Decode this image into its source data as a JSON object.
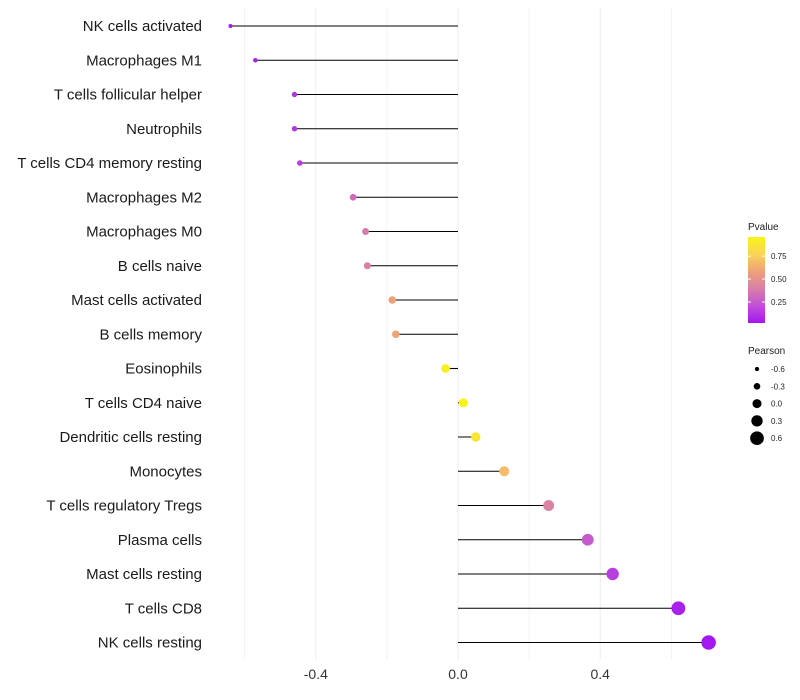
{
  "chart_data": {
    "type": "lollipop",
    "x_ticks": [
      -0.4,
      0.0,
      0.4
    ],
    "x_tick_labels": [
      "-0.4",
      "0.0",
      "0.4"
    ],
    "xlim": [
      -0.62,
      0.76
    ],
    "baseline": 0,
    "points": [
      {
        "category": "NK cells activated",
        "pearson": -0.64,
        "pvalue": 0.03
      },
      {
        "category": "Macrophages M1",
        "pearson": -0.57,
        "pvalue": 0.06
      },
      {
        "category": "T cells follicular helper",
        "pearson": -0.46,
        "pvalue": 0.12
      },
      {
        "category": "Neutrophils",
        "pearson": -0.46,
        "pvalue": 0.12
      },
      {
        "category": "T cells CD4 memory resting",
        "pearson": -0.445,
        "pvalue": 0.14
      },
      {
        "category": "Macrophages M2",
        "pearson": -0.295,
        "pvalue": 0.32
      },
      {
        "category": "Macrophages M0",
        "pearson": -0.26,
        "pvalue": 0.38
      },
      {
        "category": "B cells naive",
        "pearson": -0.255,
        "pvalue": 0.4
      },
      {
        "category": "Mast cells activated",
        "pearson": -0.185,
        "pvalue": 0.58
      },
      {
        "category": "B cells memory",
        "pearson": -0.175,
        "pvalue": 0.6
      },
      {
        "category": "Eosinophils",
        "pearson": -0.035,
        "pvalue": 0.93
      },
      {
        "category": "T cells CD4 naive",
        "pearson": 0.015,
        "pvalue": 0.96
      },
      {
        "category": "Dendritic cells resting",
        "pearson": 0.05,
        "pvalue": 0.88
      },
      {
        "category": "Monocytes",
        "pearson": 0.13,
        "pvalue": 0.68
      },
      {
        "category": "T cells regulatory  Tregs ",
        "pearson": 0.255,
        "pvalue": 0.42
      },
      {
        "category": "Plasma cells",
        "pearson": 0.365,
        "pvalue": 0.25
      },
      {
        "category": "Mast cells resting",
        "pearson": 0.435,
        "pvalue": 0.15
      },
      {
        "category": "T cells CD8",
        "pearson": 0.62,
        "pvalue": 0.05
      },
      {
        "category": "NK cells resting",
        "pearson": 0.705,
        "pvalue": 0.02
      }
    ],
    "legend_color": {
      "title": "Pvalue",
      "ticks": [
        0.25,
        0.5,
        0.75
      ],
      "tick_labels": [
        "0.25",
        "0.50",
        "0.75"
      ],
      "range": [
        0.02,
        0.96
      ],
      "colors": [
        "#a317f0",
        "#c050d8",
        "#d87fa8",
        "#eea177",
        "#fbd35a",
        "#f8f415"
      ]
    },
    "legend_size": {
      "title": "Pearson",
      "values": [
        -0.6,
        -0.3,
        0.0,
        0.3,
        0.6
      ],
      "labels": [
        "-0.6",
        "-0.3",
        "0.0",
        "0.3",
        "0.6"
      ]
    },
    "line_color": "#000000",
    "grid_color": "#ebebeb"
  }
}
